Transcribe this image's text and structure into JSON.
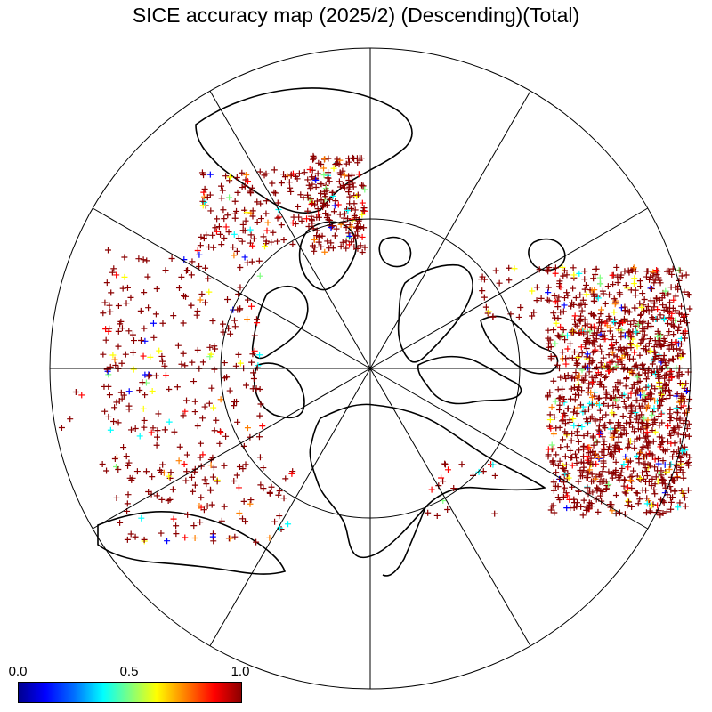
{
  "title": "SICE accuracy map (2025/2) (Descending)(Total)",
  "colorbar": {
    "labels": [
      "0.0",
      "0.5",
      "1.0"
    ],
    "colors": [
      "#00008f",
      "#0000ff",
      "#0070ff",
      "#00ffff",
      "#7fff7f",
      "#ffff00",
      "#ff7f00",
      "#ff0000",
      "#8b0000"
    ],
    "min": 0.0,
    "max": 1.0,
    "minor_tick_count": 10
  },
  "map": {
    "projection": "north-polar-stereographic",
    "meridian_spacing_deg": 30,
    "parallel_circle_count": 1,
    "marker": "+",
    "dominant_marker_color": "#8b0000"
  }
}
